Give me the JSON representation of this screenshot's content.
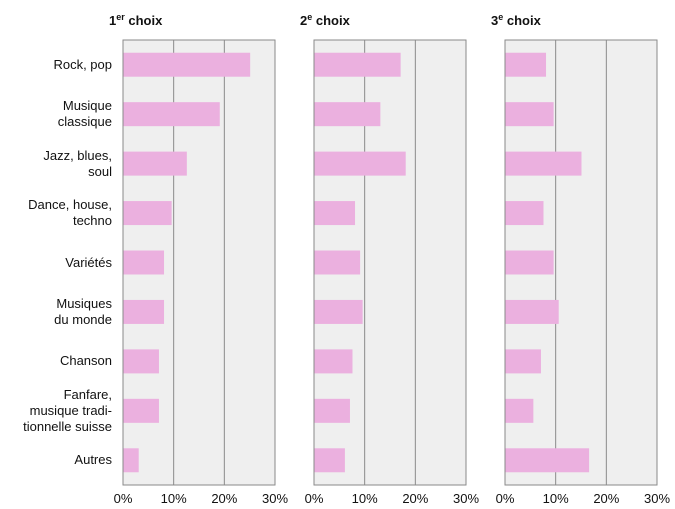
{
  "chart_data": {
    "type": "bar",
    "orientation": "horizontal",
    "categories": [
      [
        "Rock, pop"
      ],
      [
        "Musique",
        "classique"
      ],
      [
        "Jazz, blues,",
        "soul"
      ],
      [
        "Dance, house,",
        "techno"
      ],
      [
        "Variétés"
      ],
      [
        "Musiques",
        "du monde"
      ],
      [
        "Chanson"
      ],
      [
        "Fanfare,",
        "musique tradi-",
        "tionnelle suisse"
      ],
      [
        "Autres"
      ]
    ],
    "panels": [
      {
        "title_main": "1",
        "title_sup": "er",
        "title_rest": " choix",
        "values": [
          25,
          19,
          12.5,
          9.5,
          8,
          8,
          7,
          7,
          3
        ]
      },
      {
        "title_main": "2",
        "title_sup": "e",
        "title_rest": " choix",
        "values": [
          17,
          13,
          18,
          8,
          9,
          9.5,
          7.5,
          7,
          6
        ]
      },
      {
        "title_main": "3",
        "title_sup": "e",
        "title_rest": " choix",
        "values": [
          8,
          9.5,
          15,
          7.5,
          9.5,
          10.5,
          7,
          5.5,
          16.5
        ]
      }
    ],
    "xlim": [
      0,
      30
    ],
    "xticks": [
      "0%",
      "10%",
      "20%",
      "30%"
    ],
    "bar_color": "#ebb0df",
    "plot_background": "#efefef",
    "gridlines": true
  }
}
